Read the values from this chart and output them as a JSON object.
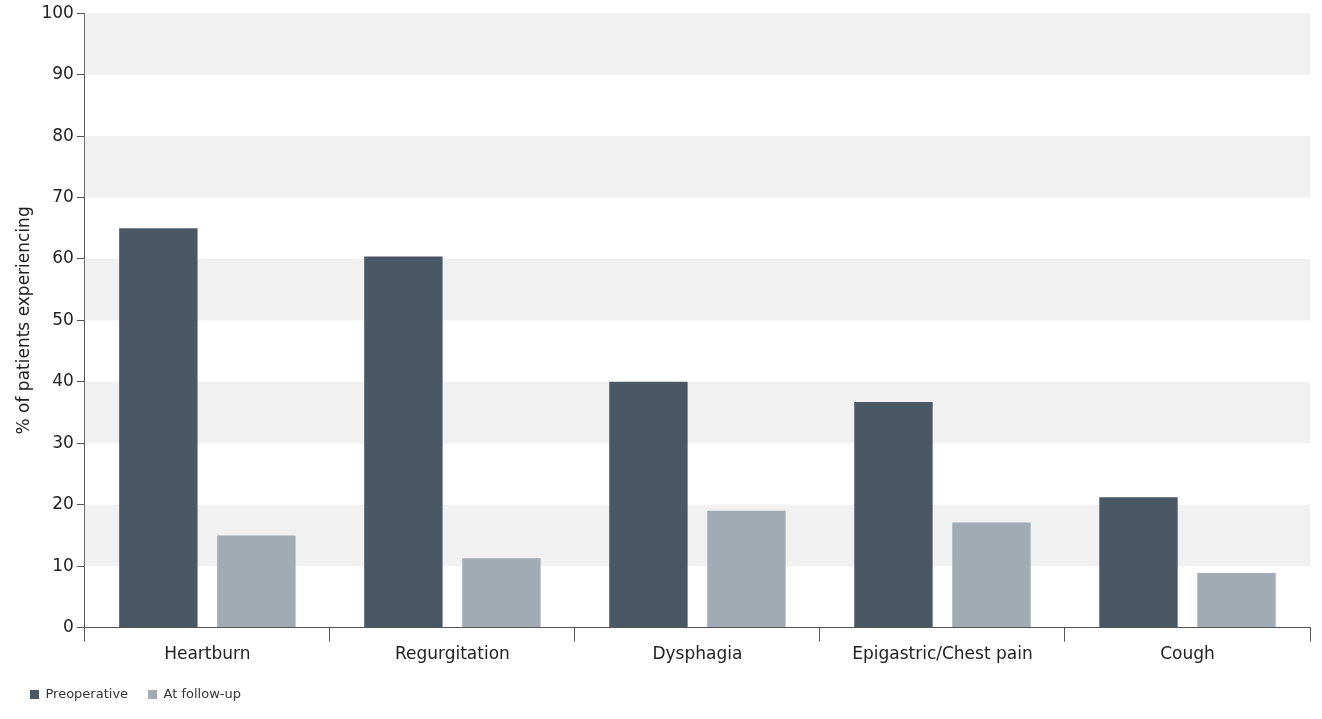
{
  "chart_data": {
    "type": "bar",
    "ylabel": "% of patients experiencing",
    "categories": [
      "Heartburn",
      "Regurgitation",
      "Dysphagia",
      "Epigastric/Chest pain",
      "Cough"
    ],
    "series": [
      {
        "name": "Preoperative",
        "color": "#4a5866",
        "values": [
          65,
          60.4,
          40,
          36.7,
          21.2
        ]
      },
      {
        "name": "At follow-up",
        "color": "#a2abb3",
        "values": [
          15,
          11.3,
          19,
          17.1,
          8.9
        ]
      }
    ],
    "ylim": [
      0,
      100
    ],
    "yticks": [
      0,
      10,
      20,
      30,
      40,
      50,
      60,
      70,
      80,
      90,
      100
    ],
    "bands": [
      {
        "axis": "y",
        "from": 10,
        "to": 20,
        "color": "#f1f1f1"
      },
      {
        "axis": "y",
        "from": 30,
        "to": 40,
        "color": "#f1f1f1"
      },
      {
        "axis": "y",
        "from": 50,
        "to": 60,
        "color": "#f1f1f1"
      },
      {
        "axis": "y",
        "from": 70,
        "to": 80,
        "color": "#f1f1f1"
      },
      {
        "axis": "y",
        "from": 90,
        "to": 100,
        "color": "#f1f1f1"
      }
    ],
    "legend": "bottom left"
  }
}
